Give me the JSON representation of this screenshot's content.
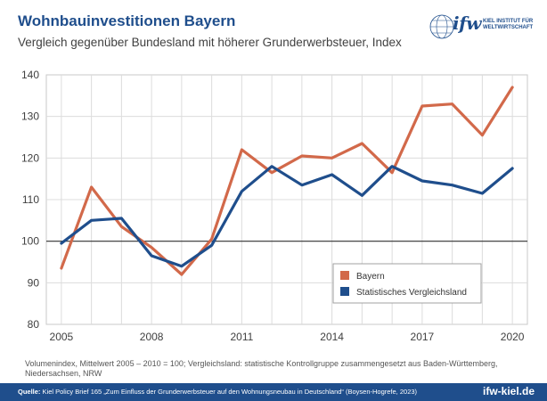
{
  "header": {
    "title": "Wohnbauinvestitionen Bayern",
    "subtitle": "Vergleich gegenüber Bundesland mit höherer Grunderwerbsteuer, Index"
  },
  "logo": {
    "name": "ifw",
    "line1": "KIEL INSTITUT FÜR",
    "line2": "WELTWIRTSCHAFT"
  },
  "chart_data": {
    "type": "line",
    "x": [
      2005,
      2006,
      2007,
      2008,
      2009,
      2010,
      2011,
      2012,
      2013,
      2014,
      2015,
      2016,
      2017,
      2018,
      2019,
      2020
    ],
    "series": [
      {
        "name": "Bayern",
        "color": "#d2694a",
        "values": [
          93.5,
          113.0,
          103.5,
          98.5,
          92.0,
          100.5,
          122.0,
          116.5,
          120.5,
          120.0,
          123.5,
          116.5,
          132.5,
          133.0,
          125.5,
          137.0
        ]
      },
      {
        "name": "Statistisches Vergleichsland",
        "color": "#1f4e8c",
        "values": [
          99.5,
          105.0,
          105.5,
          96.5,
          94.0,
          99.0,
          112.0,
          118.0,
          113.5,
          116.0,
          111.0,
          118.0,
          114.5,
          113.5,
          111.5,
          117.5
        ]
      }
    ],
    "ylim": [
      80,
      140
    ],
    "yticks": [
      80,
      90,
      100,
      110,
      120,
      130,
      140
    ],
    "xticks": [
      2005,
      2008,
      2011,
      2014,
      2017,
      2020
    ],
    "xlim": [
      2004.5,
      2020.5
    ],
    "reference_line": 100,
    "grid": true,
    "legend_position": "lower-right",
    "xlabel": "",
    "ylabel": ""
  },
  "footnote": "Volumenindex, Mittelwert 2005 – 2010 = 100; Vergleichsland: statistische Kontrollgruppe zusammengesetzt aus Baden-Württemberg, Niedersachsen, NRW",
  "footer": {
    "source_label": "Quelle:",
    "source_text": "Kiel Policy Brief 165 „Zum Einfluss der Grunderwerbsteuer auf den Wohnungsneubau in Deutschland“ (Boysen-Hogrefe, 2023)",
    "url": "ifw-kiel.de"
  }
}
